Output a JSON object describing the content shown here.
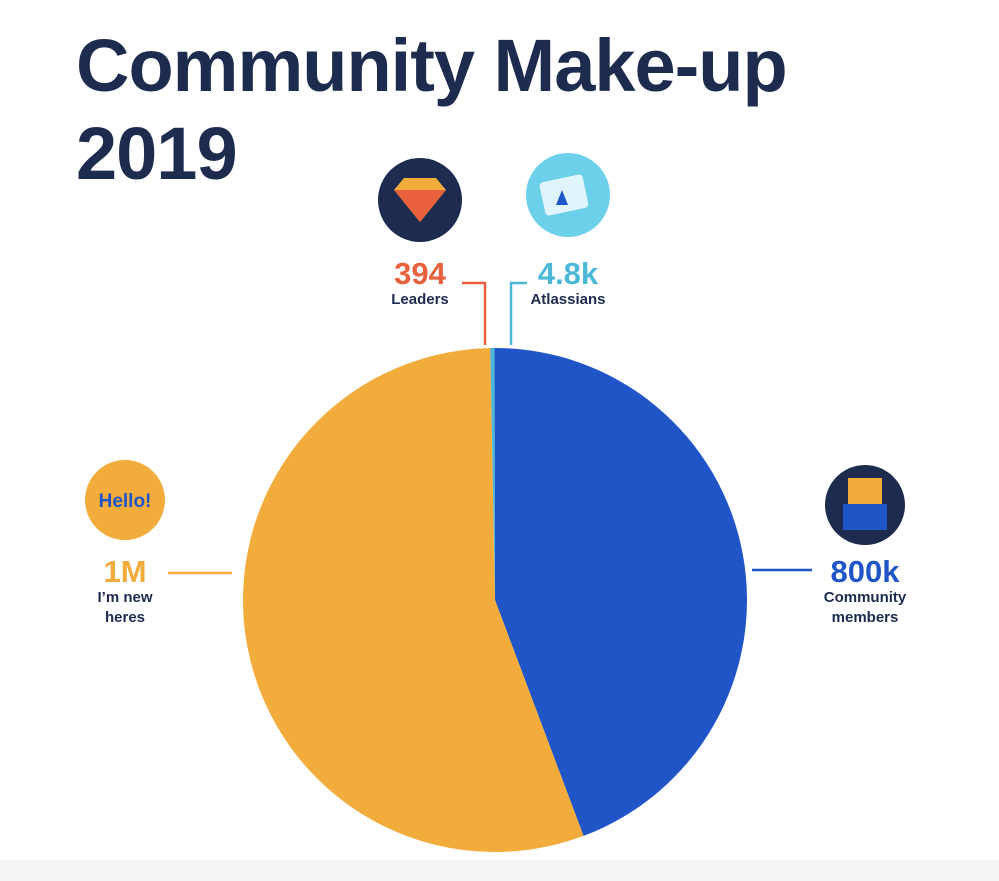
{
  "chart_data": {
    "type": "pie",
    "title": "Community Make-up 2019",
    "categories": [
      "Leaders",
      "Atlassians",
      "Community members",
      "I’m new heres"
    ],
    "values": [
      394,
      4800,
      800000,
      1000000
    ],
    "value_labels": [
      "394",
      "4.8k",
      "800k",
      "1M"
    ],
    "colors": [
      "#e8603c",
      "#4bb8d8",
      "#1f55c7",
      "#f2ac3c"
    ]
  }
}
